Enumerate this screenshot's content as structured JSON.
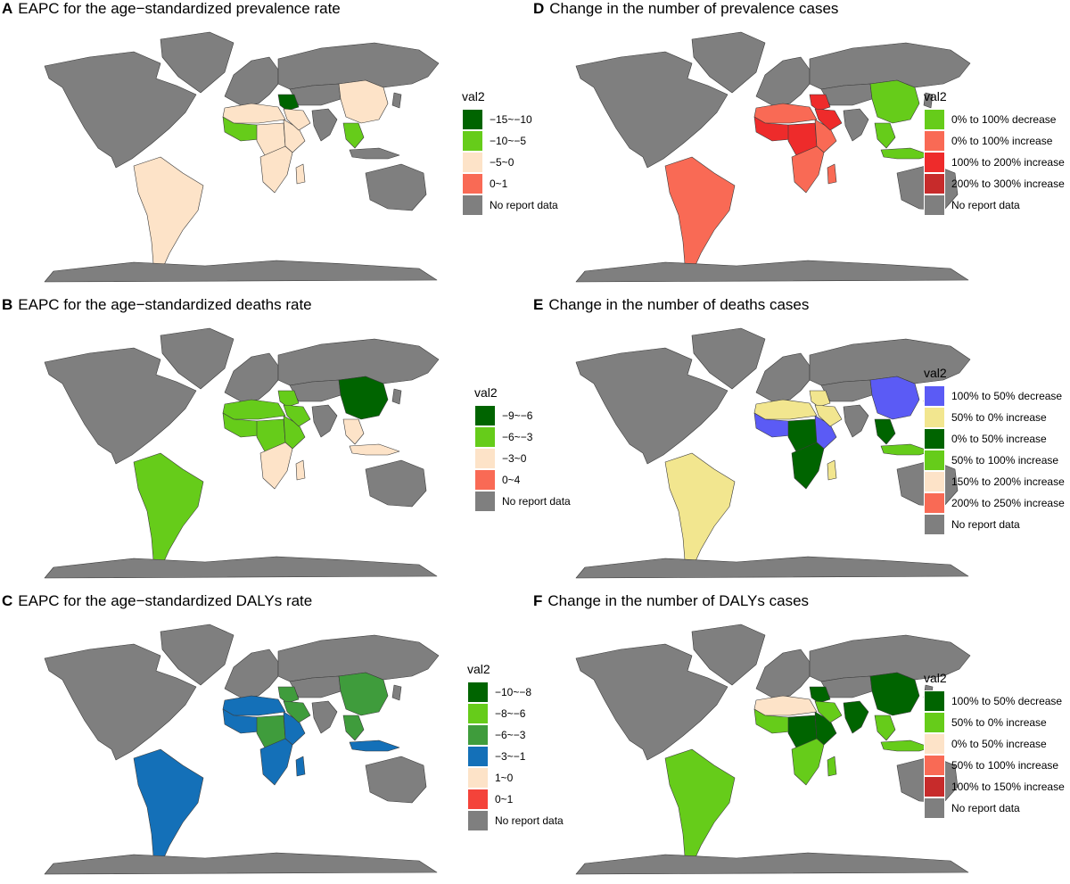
{
  "palette": {
    "land": "#808080",
    "border": "#3a3a3a",
    "no_data": "#7f7f7f"
  },
  "panels": [
    {
      "letter": "A",
      "title": "EAPC for the age−standardized prevalence rate",
      "legend_title": "val2",
      "legend": [
        {
          "label": "−15~−10",
          "color": "#006400"
        },
        {
          "label": "−10~−5",
          "color": "#66cc1a"
        },
        {
          "label": "−5~0",
          "color": "#fde3c8"
        },
        {
          "label": "0~1",
          "color": "#f96a55"
        },
        {
          "label": "No report data",
          "color": "#7f7f7f"
        }
      ],
      "regions": {
        "north_america": 4,
        "greenland": 4,
        "south_america": 2,
        "north_africa": 2,
        "west_africa": 1,
        "central_africa": 2,
        "east_africa": 2,
        "southern_africa": 2,
        "madagascar": 2,
        "middle_east": 0,
        "arabia": 2,
        "europe": 4,
        "russia": 4,
        "central_asia": 4,
        "china": 2,
        "india": 4,
        "southeast_asia": 1,
        "indonesia": 4,
        "australia": 4,
        "japan": 4,
        "antarctica": 4
      }
    },
    {
      "letter": "B",
      "title": "EAPC for the age−standardized deaths rate",
      "legend_title": "val2",
      "legend": [
        {
          "label": "−9~−6",
          "color": "#006400"
        },
        {
          "label": "−6~−3",
          "color": "#66cc1a"
        },
        {
          "label": "−3~0",
          "color": "#fde3c8"
        },
        {
          "label": "0~4",
          "color": "#f96a55"
        },
        {
          "label": "No report data",
          "color": "#7f7f7f"
        }
      ],
      "regions": {
        "north_america": 4,
        "greenland": 4,
        "south_america": 1,
        "north_africa": 1,
        "west_africa": 1,
        "central_africa": 1,
        "east_africa": 1,
        "southern_africa": 2,
        "madagascar": 2,
        "middle_east": 1,
        "arabia": 1,
        "europe": 4,
        "russia": 4,
        "central_asia": 4,
        "china": 0,
        "india": 4,
        "southeast_asia": 2,
        "indonesia": 2,
        "australia": 4,
        "japan": 4,
        "antarctica": 4
      }
    },
    {
      "letter": "C",
      "title": "EAPC for the age−standardized DALYs rate",
      "legend_title": "val2",
      "legend": [
        {
          "label": "−10~−8",
          "color": "#006400"
        },
        {
          "label": "−8~−6",
          "color": "#66cc1a"
        },
        {
          "label": "−6~−3",
          "color": "#3f9c3c"
        },
        {
          "label": "−3~−1",
          "color": "#1470b8"
        },
        {
          "label": "1~0",
          "color": "#fde3c8"
        },
        {
          "label": "0~1",
          "color": "#f4433a"
        },
        {
          "label": "No report data",
          "color": "#7f7f7f"
        }
      ],
      "regions": {
        "north_america": 6,
        "greenland": 6,
        "south_america": 3,
        "north_africa": 3,
        "west_africa": 3,
        "central_africa": 2,
        "east_africa": 3,
        "southern_africa": 3,
        "madagascar": 3,
        "middle_east": 2,
        "arabia": 2,
        "europe": 6,
        "russia": 6,
        "central_asia": 6,
        "china": 2,
        "india": 6,
        "southeast_asia": 2,
        "indonesia": 3,
        "australia": 6,
        "japan": 6,
        "antarctica": 6
      }
    },
    {
      "letter": "D",
      "title": "Change in the number of prevalence cases",
      "legend_title": "val2",
      "legend": [
        {
          "label": "0% to 100% decrease",
          "color": "#66cc1a"
        },
        {
          "label": "0% to 100% increase",
          "color": "#f96a55"
        },
        {
          "label": "100% to 200% increase",
          "color": "#ee2b2b"
        },
        {
          "label": "200% to 300% increase",
          "color": "#c72b2b"
        },
        {
          "label": "No report data",
          "color": "#7f7f7f"
        }
      ],
      "regions": {
        "north_america": 4,
        "greenland": 4,
        "south_america": 1,
        "north_africa": 1,
        "west_africa": 2,
        "central_africa": 2,
        "east_africa": 1,
        "southern_africa": 1,
        "madagascar": 1,
        "middle_east": 2,
        "arabia": 2,
        "europe": 4,
        "russia": 4,
        "central_asia": 4,
        "china": 0,
        "india": 4,
        "southeast_asia": 0,
        "indonesia": 0,
        "australia": 4,
        "japan": 4,
        "antarctica": 4
      }
    },
    {
      "letter": "E",
      "title": "Change in the number of deaths cases",
      "legend_title": "val2",
      "legend": [
        {
          "label": "100% to 50% decrease",
          "color": "#5b5bf5"
        },
        {
          "label": "50% to 0% increase",
          "color": "#f2e68f"
        },
        {
          "label": "0% to 50% increase",
          "color": "#006400"
        },
        {
          "label": "50% to 100% increase",
          "color": "#66cc1a"
        },
        {
          "label": "150% to 200% increase",
          "color": "#fde3c8"
        },
        {
          "label": "200% to 250% increase",
          "color": "#f96a55"
        },
        {
          "label": "No report data",
          "color": "#7f7f7f"
        }
      ],
      "regions": {
        "north_america": 6,
        "greenland": 6,
        "south_america": 1,
        "north_africa": 1,
        "west_africa": 0,
        "central_africa": 2,
        "east_africa": 0,
        "southern_africa": 2,
        "madagascar": 1,
        "middle_east": 1,
        "arabia": 1,
        "europe": 6,
        "russia": 6,
        "central_asia": 6,
        "china": 0,
        "india": 6,
        "southeast_asia": 2,
        "indonesia": 3,
        "australia": 6,
        "japan": 6,
        "antarctica": 6
      }
    },
    {
      "letter": "F",
      "title": "Change in the number of DALYs cases",
      "legend_title": "val2",
      "legend": [
        {
          "label": "100% to 50% decrease",
          "color": "#006400"
        },
        {
          "label": "50% to 0% increase",
          "color": "#66cc1a"
        },
        {
          "label": "0% to 50% increase",
          "color": "#fde3c8"
        },
        {
          "label": "50% to 100% increase",
          "color": "#f96a55"
        },
        {
          "label": "100% to 150% increase",
          "color": "#c72b2b"
        },
        {
          "label": "No report data",
          "color": "#7f7f7f"
        }
      ],
      "regions": {
        "north_america": 5,
        "greenland": 5,
        "south_america": 1,
        "north_africa": 2,
        "west_africa": 1,
        "central_africa": 0,
        "east_africa": 0,
        "southern_africa": 1,
        "madagascar": 1,
        "middle_east": 0,
        "arabia": 1,
        "europe": 5,
        "russia": 5,
        "central_asia": 5,
        "china": 0,
        "india": 0,
        "southeast_asia": 1,
        "indonesia": 1,
        "australia": 5,
        "japan": 5,
        "antarctica": 5
      }
    }
  ]
}
